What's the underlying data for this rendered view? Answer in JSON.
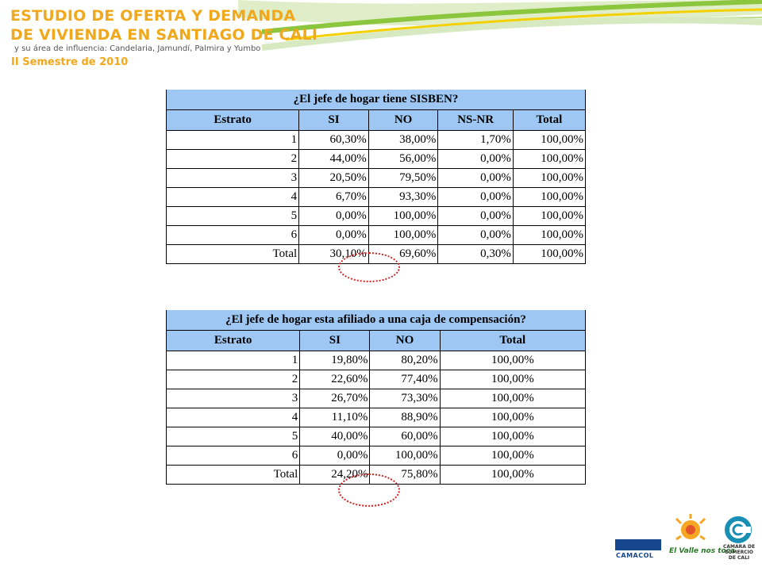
{
  "header": {
    "title_line1": "ESTUDIO DE OFERTA Y DEMANDA",
    "title_line2": "DE VIVIENDA EN SANTIAGO DE CALI",
    "subtitle": "y su área de influencia: Candelaria, Jamundí, Palmira y Yumbo",
    "semester": "II Semestre de 2010"
  },
  "table1": {
    "question": "¿El jefe de hogar tiene SISBEN?",
    "columns": [
      "Estrato",
      "SI",
      "NO",
      "NS-NR",
      "Total"
    ],
    "rows": [
      [
        "1",
        "60,30%",
        "38,00%",
        "1,70%",
        "100,00%"
      ],
      [
        "2",
        "44,00%",
        "56,00%",
        "0,00%",
        "100,00%"
      ],
      [
        "3",
        "20,50%",
        "79,50%",
        "0,00%",
        "100,00%"
      ],
      [
        "4",
        "6,70%",
        "93,30%",
        "0,00%",
        "100,00%"
      ],
      [
        "5",
        "0,00%",
        "100,00%",
        "0,00%",
        "100,00%"
      ],
      [
        "6",
        "0,00%",
        "100,00%",
        "0,00%",
        "100,00%"
      ],
      [
        "Total",
        "30,10%",
        "69,60%",
        "0,30%",
        "100,00%"
      ]
    ]
  },
  "table2": {
    "question": "¿El jefe de hogar esta afiliado a una caja de compensación?",
    "columns": [
      "Estrato",
      "SI",
      "NO",
      "Total"
    ],
    "rows": [
      [
        "1",
        "19,80%",
        "80,20%",
        "100,00%"
      ],
      [
        "2",
        "22,60%",
        "77,40%",
        "100,00%"
      ],
      [
        "3",
        "26,70%",
        "73,30%",
        "100,00%"
      ],
      [
        "4",
        "11,10%",
        "88,90%",
        "100,00%"
      ],
      [
        "5",
        "40,00%",
        "60,00%",
        "100,00%"
      ],
      [
        "6",
        "0,00%",
        "100,00%",
        "100,00%"
      ],
      [
        "Total",
        "24,20%",
        "75,80%",
        "100,00%"
      ]
    ]
  },
  "logos": {
    "camacol": "CAMACOL",
    "el_valle": "El Valle nos toca",
    "camara": "CAMARA DE COMERCIO DE CALI"
  },
  "colors": {
    "header_fill": "#9ec8f3",
    "title": "#f0a81c",
    "highlight_circle": "#d22020",
    "wave_green": "#8cc63f",
    "wave_yellow": "#f5d000"
  }
}
